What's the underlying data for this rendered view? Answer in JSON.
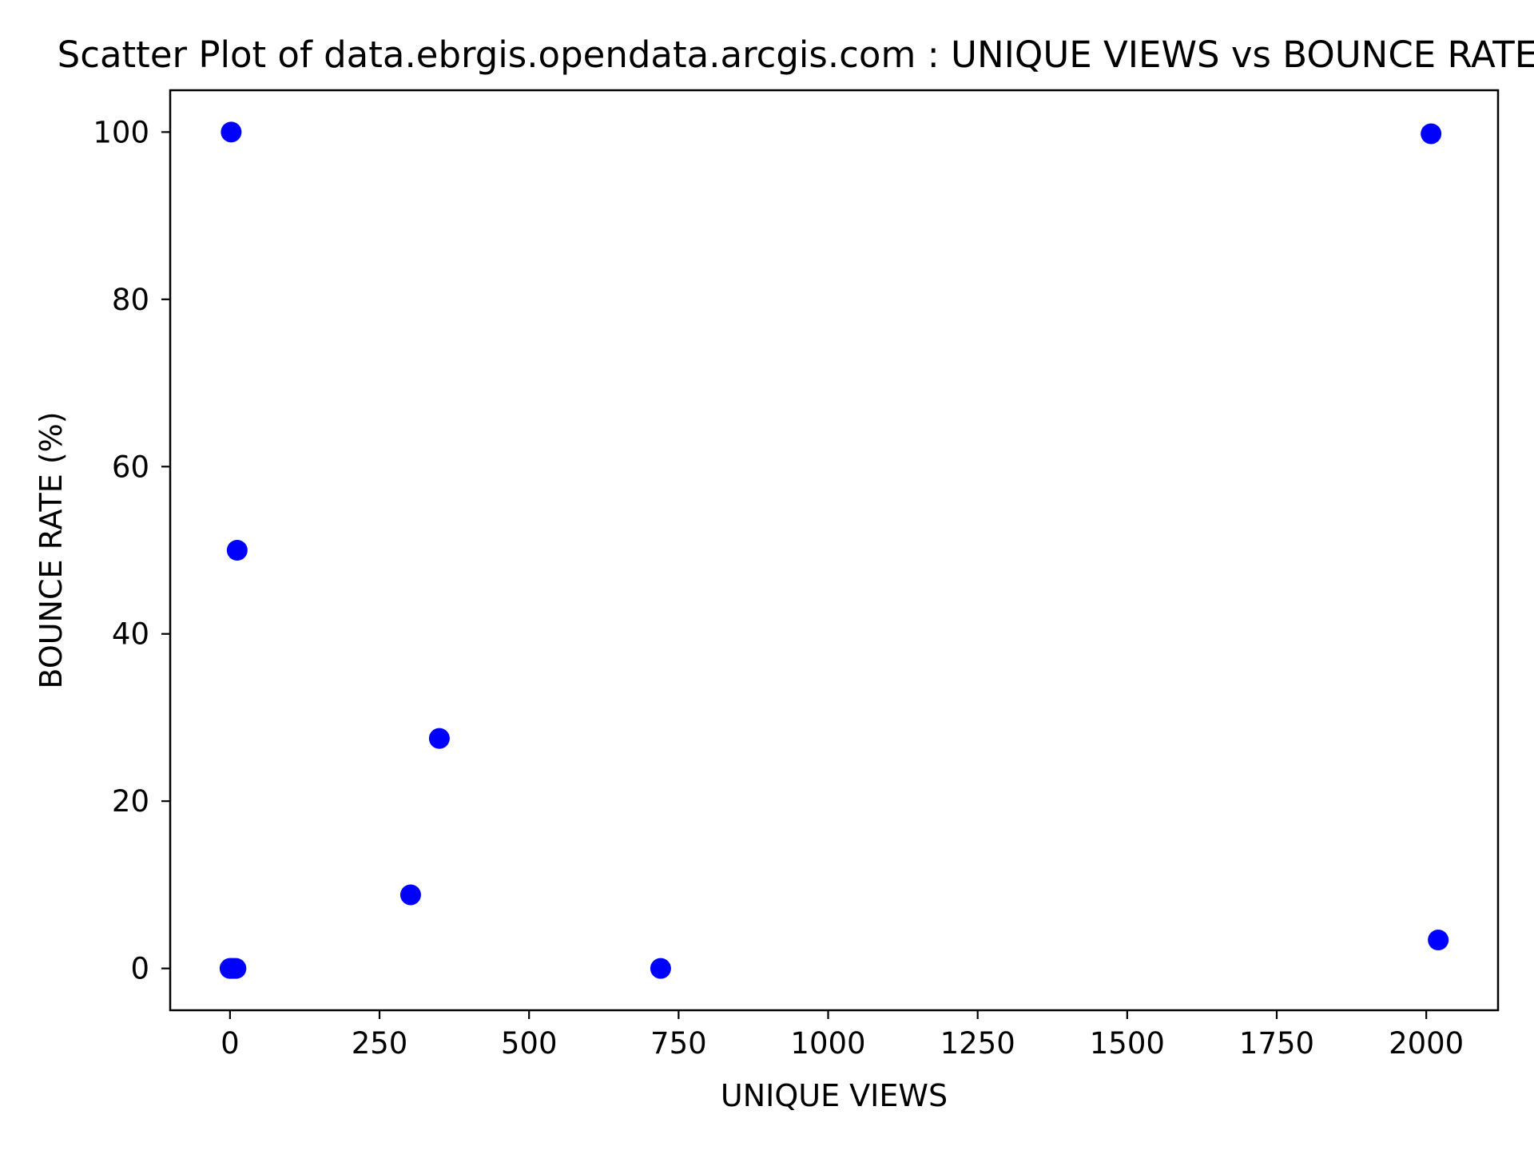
{
  "chart_data": {
    "type": "scatter",
    "title": "Scatter Plot of data.ebrgis.opendata.arcgis.com : UNIQUE VIEWS vs BOUNCE RATE (%)",
    "xlabel": "UNIQUE VIEWS",
    "ylabel": "BOUNCE RATE (%)",
    "xlim": [
      -100,
      2120
    ],
    "ylim": [
      -5,
      105
    ],
    "xticks": [
      0,
      250,
      500,
      750,
      1000,
      1250,
      1500,
      1750,
      2000
    ],
    "yticks": [
      0,
      20,
      40,
      60,
      80,
      100
    ],
    "grid": false,
    "color": "#0000ff",
    "points": [
      {
        "x": 2,
        "y": 100
      },
      {
        "x": 12,
        "y": 50
      },
      {
        "x": 350,
        "y": 27.5
      },
      {
        "x": 302,
        "y": 8.8
      },
      {
        "x": 0,
        "y": 0
      },
      {
        "x": 3,
        "y": 0
      },
      {
        "x": 6,
        "y": 0
      },
      {
        "x": 10,
        "y": 0
      },
      {
        "x": 720,
        "y": 0
      },
      {
        "x": 2008,
        "y": 99.8
      },
      {
        "x": 2020,
        "y": 3.4
      }
    ]
  }
}
